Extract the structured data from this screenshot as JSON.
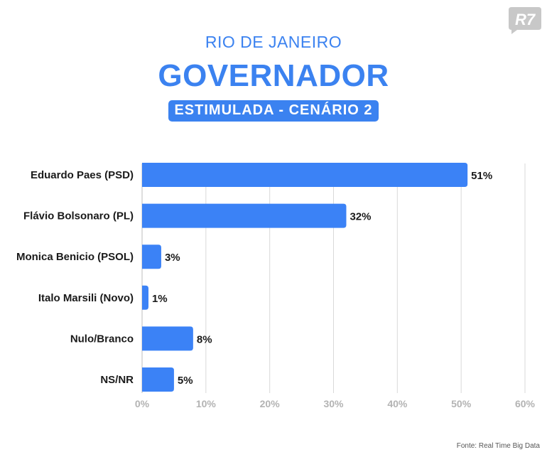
{
  "header": {
    "supertitle": "RIO DE JANEIRO",
    "title": "GOVERNADOR",
    "badge": "ESTIMULADA - CENÁRIO 2"
  },
  "logo": {
    "text": "R7",
    "icon": "r7-logo-icon",
    "color": "#c8c8c8"
  },
  "source": "Fonte: Real Time Big Data",
  "colors": {
    "accent": "#3b82f0",
    "bar": "#3b82f6",
    "grid": "#d9d9d9",
    "tick": "#b3b3b3",
    "label": "#1a1a1a"
  },
  "chart_data": {
    "type": "bar",
    "orientation": "horizontal",
    "categories": [
      "Eduardo Paes (PSD)",
      "Flávio Bolsonaro (PL)",
      "Monica Benicio (PSOL)",
      "Italo Marsili (Novo)",
      "Nulo/Branco",
      "NS/NR"
    ],
    "values": [
      51,
      32,
      3,
      1,
      8,
      5
    ],
    "value_labels": [
      "51%",
      "32%",
      "3%",
      "1%",
      "8%",
      "5%"
    ],
    "xlim": [
      0,
      60
    ],
    "ticks": [
      0,
      10,
      20,
      30,
      40,
      50,
      60
    ],
    "tick_labels": [
      "0%",
      "10%",
      "20%",
      "30%",
      "40%",
      "50%",
      "60%"
    ],
    "grid": true,
    "legend": "none"
  }
}
